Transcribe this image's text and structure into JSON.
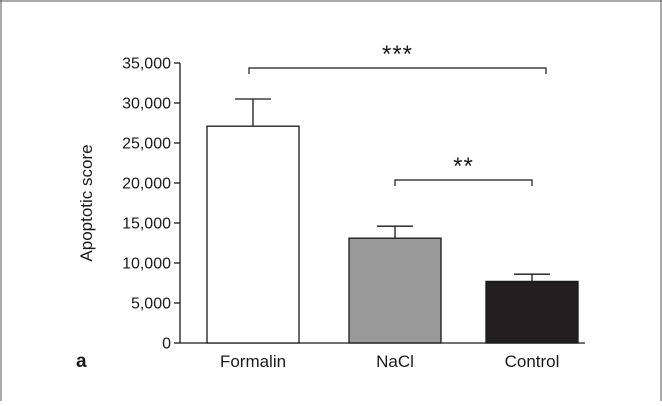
{
  "chart_data": {
    "type": "bar",
    "categories": [
      "Formalin",
      "NaCl",
      "Control"
    ],
    "values": [
      27100,
      13100,
      7700
    ],
    "errors_upper": [
      30500,
      14600,
      8600
    ],
    "colors": [
      "#ffffff",
      "#9a9a9a",
      "#231f20"
    ],
    "ylabel": "Apoptotic score",
    "xlabel": "",
    "ylim": [
      0,
      35000
    ],
    "yticks": [
      0,
      5000,
      10000,
      15000,
      20000,
      25000,
      30000,
      35000
    ],
    "ytick_labels": [
      "0",
      "5,000",
      "10,000",
      "15,000",
      "20,000",
      "25,000",
      "30,000",
      "35,000"
    ],
    "significance": [
      {
        "from": "Formalin",
        "to": "Control",
        "label": "***"
      },
      {
        "from": "NaCl",
        "to": "Control",
        "label": "**"
      }
    ],
    "panel_label": "a",
    "grid": false
  }
}
